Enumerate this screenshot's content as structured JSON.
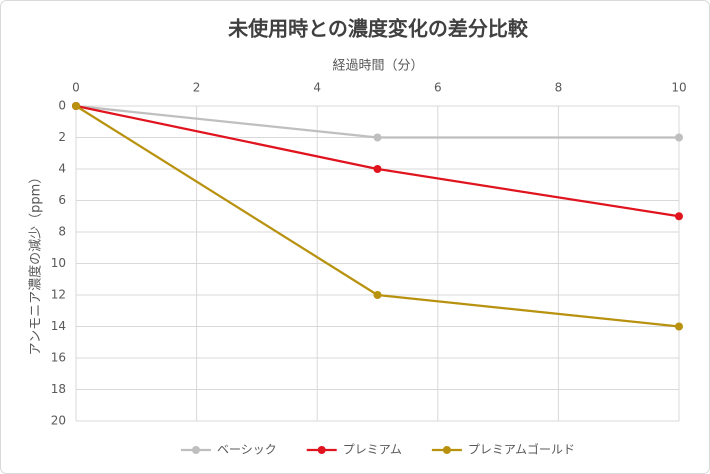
{
  "chart_data": {
    "type": "line",
    "title": "未使用時との濃度変化の差分比較",
    "x_label": "経過時間（分）",
    "y_label": "アンモニア濃度の減少（ppm）",
    "x": [
      0,
      5,
      10
    ],
    "series": [
      {
        "name": "ベーシック",
        "color": "#bfbfbf",
        "values": [
          0,
          2,
          2
        ]
      },
      {
        "name": "プレミアム",
        "color": "#e0141e",
        "values": [
          0,
          4,
          7
        ]
      },
      {
        "name": "プレミアムゴールド",
        "color": "#b8920f",
        "values": [
          0,
          12,
          14
        ]
      }
    ],
    "xlim": [
      0,
      10
    ],
    "xticks": [
      0,
      2,
      4,
      6,
      8,
      10
    ],
    "ylim": [
      0,
      20
    ],
    "yticks": [
      0,
      2,
      4,
      6,
      8,
      10,
      12,
      14,
      16,
      18,
      20
    ],
    "y_inverted": true,
    "x_axis_position": "top",
    "grid": true,
    "legend": "bottom"
  }
}
